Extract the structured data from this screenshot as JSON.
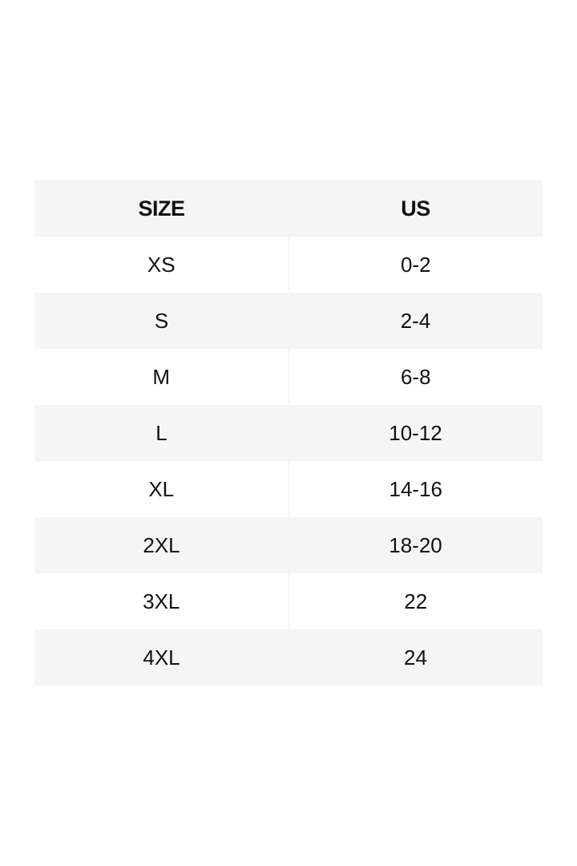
{
  "headers": {
    "size": "SIZE",
    "us": "US"
  },
  "rows": [
    {
      "size": "XS",
      "us": "0-2"
    },
    {
      "size": "S",
      "us": "2-4"
    },
    {
      "size": "M",
      "us": "6-8"
    },
    {
      "size": "L",
      "us": "10-12"
    },
    {
      "size": "XL",
      "us": "14-16"
    },
    {
      "size": "2XL",
      "us": "18-20"
    },
    {
      "size": "3XL",
      "us": "22"
    },
    {
      "size": "4XL",
      "us": "24"
    }
  ],
  "colors": {
    "shaded_row": "#f5f5f5",
    "text": "#111111"
  }
}
